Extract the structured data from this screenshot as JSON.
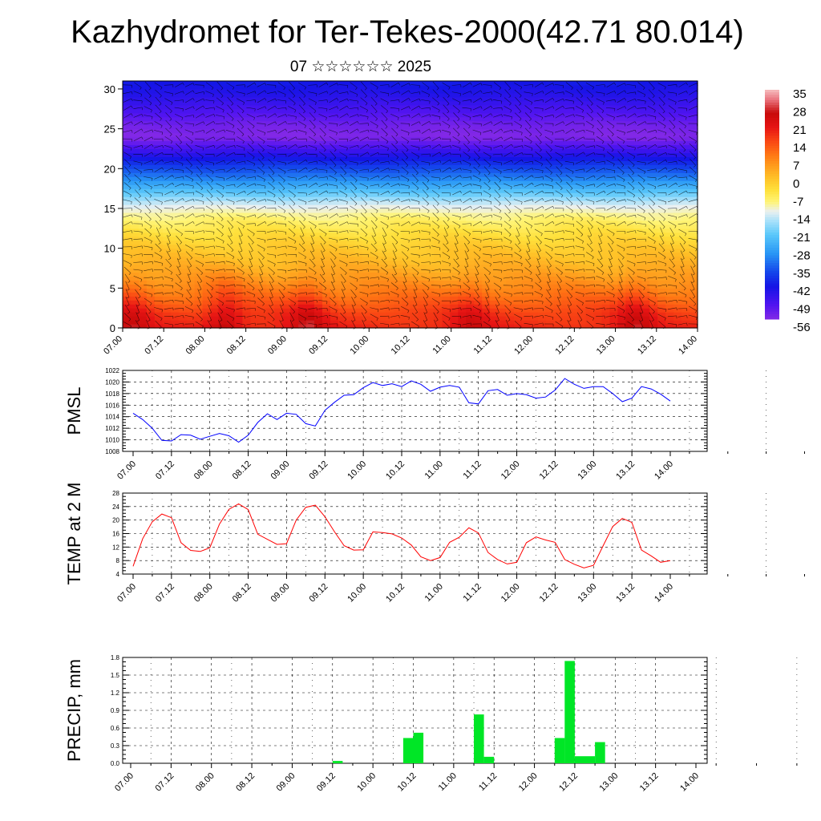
{
  "title": "Kazhydromet for Ter-Tekes-2000(42.71 80.014)",
  "subtitle": "07 ☆☆☆☆☆☆ 2025",
  "time_labels": [
    "07.00",
    "07.12",
    "08.00",
    "08.12",
    "09.00",
    "09.12",
    "10.00",
    "10.12",
    "11.00",
    "11.12",
    "12.00",
    "12.12",
    "13.00",
    "13.12",
    "14.00"
  ],
  "chart_data": [
    {
      "type": "heatmap",
      "name": "cross-section",
      "ylim": [
        0,
        31
      ],
      "yticks": [
        0,
        5,
        10,
        15,
        20,
        25,
        30
      ],
      "colorbar_labels": [
        "35",
        "28",
        "21",
        "14",
        "7",
        "0",
        "-7",
        "-14",
        "-21",
        "-28",
        "-35",
        "-42",
        "-49",
        "-56"
      ],
      "colorbar_range": [
        -60,
        38
      ],
      "heights": [
        0,
        2,
        4,
        6,
        8,
        10,
        12,
        14,
        15.5,
        17,
        19,
        21,
        22.5,
        24,
        25.5,
        27,
        29,
        31
      ],
      "profile_temps": [
        20,
        17,
        11,
        6,
        2,
        -1,
        -5,
        -10,
        -15,
        -24,
        -35,
        -44,
        -52,
        -60,
        -58,
        -54,
        -49,
        -45
      ],
      "warm_peaks": [
        {
          "t": 0.1,
          "amp": 1.0
        },
        {
          "t": 1.25,
          "amp": 1.1
        },
        {
          "t": 2.25,
          "amp": 1.1
        },
        {
          "t": 4.25,
          "amp": 0.8
        },
        {
          "t": 6.25,
          "amp": 1.0
        }
      ]
    },
    {
      "type": "line",
      "ylabel": "PMSL",
      "ylim": [
        1008,
        1022
      ],
      "yticks": [
        1008,
        1010,
        1012,
        1014,
        1016,
        1018,
        1020,
        1022
      ],
      "color": "#0000ff",
      "x_step_hours": 3,
      "values": [
        1014.6,
        1013.5,
        1012.0,
        1009.9,
        1009.8,
        1010.9,
        1010.8,
        1010.1,
        1010.6,
        1011.1,
        1010.7,
        1009.6,
        1010.8,
        1013.0,
        1014.5,
        1013.5,
        1014.6,
        1014.4,
        1012.8,
        1012.4,
        1015.1,
        1016.5,
        1017.7,
        1017.8,
        1019.0,
        1019.9,
        1019.4,
        1019.7,
        1019.2,
        1020.2,
        1019.6,
        1018.4,
        1019.1,
        1019.4,
        1019.1,
        1016.4,
        1016.2,
        1018.5,
        1018.7,
        1017.7,
        1018.0,
        1017.8,
        1017.2,
        1017.4,
        1018.6,
        1020.6,
        1019.6,
        1018.9,
        1019.2,
        1019.2,
        1018.0,
        1016.6,
        1017.2,
        1019.2,
        1018.8,
        1017.9,
        1016.7
      ]
    },
    {
      "type": "line",
      "ylabel": "TEMP at 2 M",
      "ylim": [
        4,
        28
      ],
      "yticks": [
        4,
        8,
        12,
        16,
        20,
        24,
        28
      ],
      "color": "#ff0000",
      "x_step_hours": 3,
      "values": [
        6.3,
        14.5,
        19.5,
        21.8,
        20.7,
        13.3,
        11.0,
        10.7,
        11.8,
        18.8,
        23.2,
        24.8,
        23.1,
        15.8,
        14.3,
        12.8,
        13.0,
        20.0,
        23.8,
        24.4,
        21.0,
        16.5,
        12.4,
        11.1,
        11.2,
        16.5,
        16.3,
        15.9,
        14.7,
        12.6,
        9.1,
        8.0,
        8.9,
        13.4,
        14.9,
        17.7,
        16.2,
        10.4,
        8.3,
        7.0,
        7.5,
        13.3,
        15.0,
        14.1,
        13.4,
        8.3,
        6.9,
        5.8,
        6.6,
        12.4,
        18.1,
        20.5,
        19.3,
        11.1,
        9.4,
        7.5,
        8.0
      ]
    },
    {
      "type": "bar",
      "ylabel": "PRECIP, mm",
      "ylim": [
        0,
        1.8
      ],
      "yticks": [
        0,
        0.3,
        0.6,
        0.9,
        1.2,
        1.5,
        1.8
      ],
      "ytick_labels": [
        "0.0",
        "0.3",
        "0.6",
        "0.9",
        "1.2",
        "1.5",
        "1.8"
      ],
      "color": "#00e626",
      "x_step_hours": 3,
      "bars": [
        {
          "i": 20,
          "v": 0.04
        },
        {
          "i": 27,
          "v": 0.43
        },
        {
          "i": 28,
          "v": 0.52
        },
        {
          "i": 34,
          "v": 0.83
        },
        {
          "i": 35,
          "v": 0.11
        },
        {
          "i": 42,
          "v": 0.43
        },
        {
          "i": 43,
          "v": 1.74
        },
        {
          "i": 44,
          "v": 0.12
        },
        {
          "i": 45,
          "v": 0.12
        },
        {
          "i": 46,
          "v": 0.36
        }
      ]
    }
  ]
}
